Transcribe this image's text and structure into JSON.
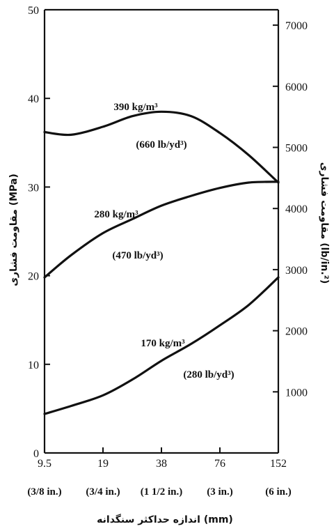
{
  "chart_data": {
    "type": "line",
    "x_scale": "log",
    "categories": [
      "9.5",
      "19",
      "38",
      "76",
      "152"
    ],
    "category_sublabels": [
      "(3/8 in.)",
      "(3/4 in.)",
      "(1 1/2 in.)",
      "(3 in.)",
      "(6 in.)"
    ],
    "xlabel": "اندازه حداکثر سنگدانه (mm)",
    "ylabel": "مقاومت فشاری (MPa)",
    "ylabel_right": "مقاومت فشاری (lb/in.²)",
    "ylim": [
      0,
      50
    ],
    "yticks": [
      0,
      10,
      20,
      30,
      40,
      50
    ],
    "ylim_right": [
      0,
      7252
    ],
    "yticks_right": [
      "1000",
      "2000",
      "3000",
      "4000",
      "5000",
      "6000",
      "7000"
    ],
    "grid": false,
    "series": [
      {
        "name": "390 kg/m³",
        "name_secondary": "(660 lb/yd³)",
        "x": [
          9.5,
          13,
          19,
          27,
          38,
          54,
          76,
          107,
          152
        ],
        "values": [
          36.2,
          35.9,
          36.8,
          38.0,
          38.5,
          38.0,
          36.1,
          33.6,
          30.5
        ]
      },
      {
        "name": "280 kg/m³",
        "name_secondary": "(470 lb/yd³)",
        "x": [
          9.5,
          13,
          19,
          27,
          38,
          54,
          76,
          107,
          152
        ],
        "values": [
          19.8,
          22.3,
          24.8,
          26.4,
          27.9,
          29.0,
          29.9,
          30.5,
          30.6
        ]
      },
      {
        "name": "170 kg/m³",
        "name_secondary": "(280 lb/yd³)",
        "x": [
          9.5,
          13,
          19,
          27,
          38,
          54,
          76,
          107,
          152
        ],
        "values": [
          4.4,
          5.3,
          6.5,
          8.3,
          10.4,
          12.3,
          14.4,
          16.7,
          19.8
        ]
      }
    ]
  }
}
